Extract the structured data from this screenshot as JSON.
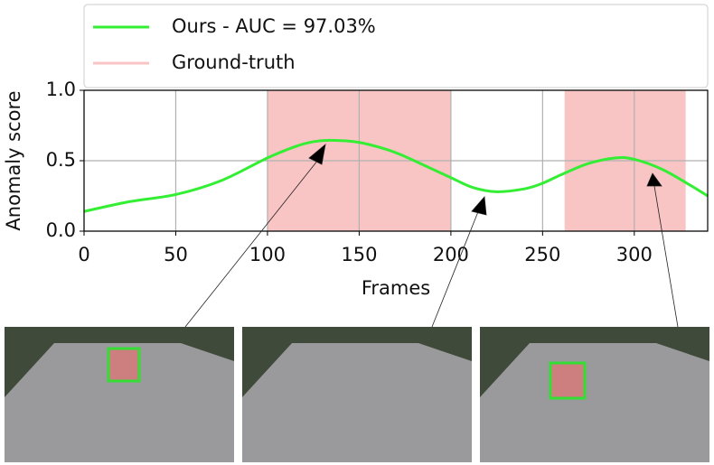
{
  "chart_data": {
    "type": "line",
    "xlabel": "Frames",
    "ylabel": "Anomaly score",
    "x": [
      0,
      25,
      50,
      75,
      100,
      115,
      125,
      135,
      150,
      165,
      175,
      190,
      200,
      212,
      225,
      240,
      250,
      260,
      275,
      290,
      300,
      315,
      330,
      340
    ],
    "series": [
      {
        "name": "Ours - AUC = 97.03%",
        "color": "#33ee33",
        "values": [
          0.14,
          0.21,
          0.26,
          0.36,
          0.52,
          0.6,
          0.635,
          0.645,
          0.63,
          0.58,
          0.53,
          0.44,
          0.38,
          0.31,
          0.28,
          0.3,
          0.34,
          0.4,
          0.48,
          0.52,
          0.51,
          0.44,
          0.33,
          0.25
        ]
      }
    ],
    "ground_truth": {
      "name": "Ground-truth",
      "color": "#f9c4c4",
      "ranges": [
        [
          100,
          200
        ],
        [
          262,
          328
        ]
      ]
    },
    "xlim": [
      0,
      340
    ],
    "xticks": [
      0,
      50,
      100,
      150,
      200,
      250,
      300
    ],
    "ylim": [
      0,
      1
    ],
    "yticks": [
      {
        "value": 0,
        "label": "0.0"
      },
      0.5,
      {
        "value": 1,
        "label": "1.0"
      }
    ],
    "grid": true,
    "legend": "top"
  }
}
